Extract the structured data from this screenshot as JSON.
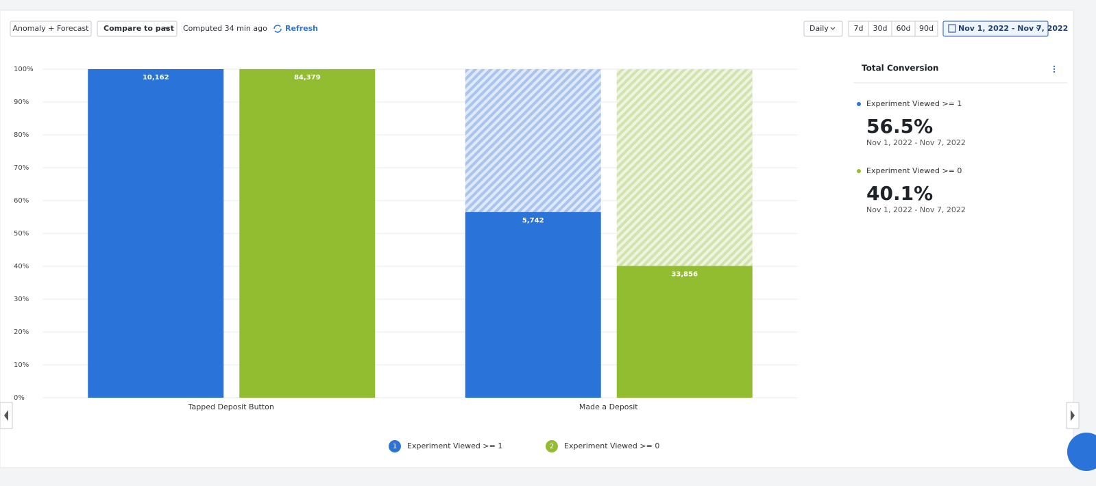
{
  "toolbar": {
    "mode": "Anomaly + Forecast",
    "compare": "Compare to past",
    "computed": "Computed 34 min ago",
    "refresh": "Refresh",
    "interval": "Daily",
    "ranges": [
      "7d",
      "30d",
      "60d",
      "90d"
    ],
    "date_range": "Nov 1, 2022 - Nov 7, 2022"
  },
  "chart_data": {
    "type": "bar",
    "categories": [
      "Tapped Deposit Button",
      "Made a Deposit"
    ],
    "series": [
      {
        "name": "Experiment Viewed >= 1",
        "marker_label": "1",
        "color": "#2a73d9",
        "values": [
          100,
          56.5
        ],
        "count_labels": [
          "10,162",
          "5,742"
        ]
      },
      {
        "name": "Experiment Viewed >= 0",
        "marker_label": "2",
        "color": "#93bd31",
        "values": [
          100,
          40.1
        ],
        "count_labels": [
          "84,379",
          "33,856"
        ]
      }
    ],
    "ylim": [
      0,
      100
    ],
    "yticks": [
      {
        "value": 0,
        "label": "0%"
      },
      {
        "value": 10,
        "label": "10%"
      },
      {
        "value": 20,
        "label": "20%"
      },
      {
        "value": 30,
        "label": "30%"
      },
      {
        "value": 40,
        "label": "40%"
      },
      {
        "value": 50,
        "label": "50%"
      },
      {
        "value": 60,
        "label": "60%"
      },
      {
        "value": 70,
        "label": "70%"
      },
      {
        "value": 80,
        "label": "80%"
      },
      {
        "value": 90,
        "label": "90%"
      },
      {
        "value": 100,
        "label": "100%"
      }
    ],
    "grid": true
  },
  "panel": {
    "title": "Total Conversion",
    "items": [
      {
        "value": "56.5%",
        "range": "Nov 1, 2022 - Nov 7, 2022"
      },
      {
        "value": "40.1%",
        "range": "Nov 1, 2022 - Nov 7, 2022"
      }
    ]
  }
}
